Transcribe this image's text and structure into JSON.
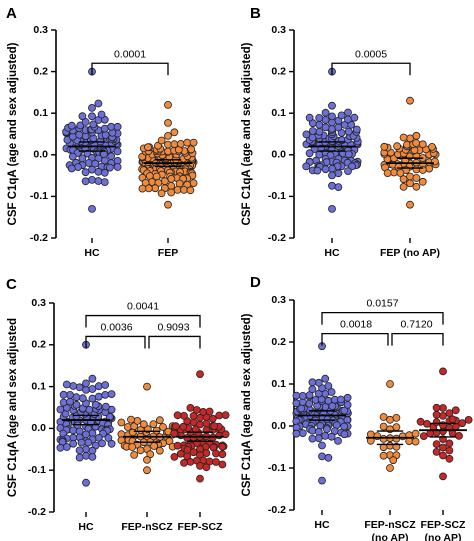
{
  "chart_data": [
    {
      "type": "scatter",
      "panel_label": "A",
      "ylabel": "CSF C1qA (age and sex adjusted)",
      "ylim": [
        -0.2,
        0.3
      ],
      "yticks": [
        -0.2,
        -0.1,
        0.0,
        0.1,
        0.2,
        0.3
      ],
      "ytick_labels": [
        "-0.2",
        "-0.1",
        "0.0",
        "0.1",
        "0.2",
        "0.3"
      ],
      "categories": [
        "HC",
        "FEP"
      ],
      "series": [
        {
          "name": "HC",
          "color": "#6b6fd6",
          "n": 110,
          "mean": 0.02,
          "sem": 0.011,
          "min": -0.13,
          "max": 0.2
        },
        {
          "name": "FEP",
          "color": "#f08a3c",
          "n": 150,
          "mean": -0.02,
          "sem": 0.008,
          "min": -0.12,
          "max": 0.12
        }
      ],
      "comparisons": [
        {
          "groups": [
            "HC",
            "FEP"
          ],
          "p_label": "0.0001"
        }
      ]
    },
    {
      "type": "scatter",
      "panel_label": "B",
      "ylabel": "CSF C1qA (age and sex adjusted)",
      "ylim": [
        -0.2,
        0.3
      ],
      "yticks": [
        -0.2,
        -0.1,
        0.0,
        0.1,
        0.2,
        0.3
      ],
      "ytick_labels": [
        "-0.2",
        "-0.1",
        "0.0",
        "0.1",
        "0.2",
        "0.3"
      ],
      "categories": [
        "HC",
        "FEP (no AP)"
      ],
      "series": [
        {
          "name": "HC",
          "color": "#6b6fd6",
          "n": 110,
          "mean": 0.02,
          "sem": 0.011,
          "min": -0.13,
          "max": 0.2
        },
        {
          "name": "FEP (no AP)",
          "color": "#f08a3c",
          "n": 65,
          "mean": -0.02,
          "sem": 0.012,
          "min": -0.12,
          "max": 0.13
        }
      ],
      "comparisons": [
        {
          "groups": [
            "HC",
            "FEP (no AP)"
          ],
          "p_label": "0.0005"
        }
      ]
    },
    {
      "type": "scatter",
      "panel_label": "C",
      "ylabel": "CSF C1qA (age and sex adjusted",
      "ylim": [
        -0.2,
        0.3
      ],
      "yticks": [
        -0.2,
        -0.1,
        0.0,
        0.1,
        0.2,
        0.3
      ],
      "ytick_labels": [
        "-0.2",
        "-0.1",
        "0.0",
        "0.1",
        "0.2",
        "0.3"
      ],
      "categories": [
        "HC",
        "FEP-nSCZ",
        "FEP-SCZ"
      ],
      "series": [
        {
          "name": "HC",
          "color": "#6b6fd6",
          "n": 110,
          "mean": 0.02,
          "sem": 0.011,
          "min": -0.13,
          "max": 0.2
        },
        {
          "name": "FEP-nSCZ",
          "color": "#f08a3c",
          "n": 50,
          "mean": -0.02,
          "sem": 0.013,
          "min": -0.1,
          "max": 0.1
        },
        {
          "name": "FEP-SCZ",
          "color": "#c62828",
          "n": 80,
          "mean": -0.02,
          "sem": 0.011,
          "min": -0.12,
          "max": 0.13
        }
      ],
      "comparisons": [
        {
          "groups": [
            "HC",
            "FEP-nSCZ"
          ],
          "p_label": "0.0036"
        },
        {
          "groups": [
            "FEP-nSCZ",
            "FEP-SCZ"
          ],
          "p_label": "0.9093"
        },
        {
          "groups": [
            "HC",
            "FEP-SCZ"
          ],
          "p_label": "0.0041"
        }
      ]
    },
    {
      "type": "scatter",
      "panel_label": "D",
      "ylabel": "CSF C1qA (age and sex adjusted)",
      "ylim": [
        -0.2,
        0.3
      ],
      "yticks": [
        -0.2,
        -0.1,
        0.0,
        0.1,
        0.2,
        0.3
      ],
      "ytick_labels": [
        "-0.2",
        "-0.1",
        "0.0",
        "0.1",
        "0.2",
        "0.3"
      ],
      "categories": [
        "HC",
        "FEP-nSCZ\n(no AP)",
        "FEP-SCZ\n(no AP)"
      ],
      "series": [
        {
          "name": "HC",
          "color": "#6b6fd6",
          "n": 110,
          "mean": 0.025,
          "sem": 0.011,
          "min": -0.13,
          "max": 0.19
        },
        {
          "name": "FEP-nSCZ (no AP)",
          "color": "#f08a3c",
          "n": 26,
          "mean": -0.028,
          "sem": 0.016,
          "min": -0.1,
          "max": 0.1
        },
        {
          "name": "FEP-SCZ (no AP)",
          "color": "#c62828",
          "n": 34,
          "mean": -0.01,
          "sem": 0.016,
          "min": -0.12,
          "max": 0.13
        }
      ],
      "comparisons": [
        {
          "groups": [
            "HC",
            "FEP-nSCZ (no AP)"
          ],
          "p_label": "0.0018"
        },
        {
          "groups": [
            "FEP-nSCZ (no AP)",
            "FEP-SCZ (no AP)"
          ],
          "p_label": "0.7120"
        },
        {
          "groups": [
            "HC",
            "FEP-SCZ (no AP)"
          ],
          "p_label": "0.0157"
        }
      ]
    }
  ]
}
